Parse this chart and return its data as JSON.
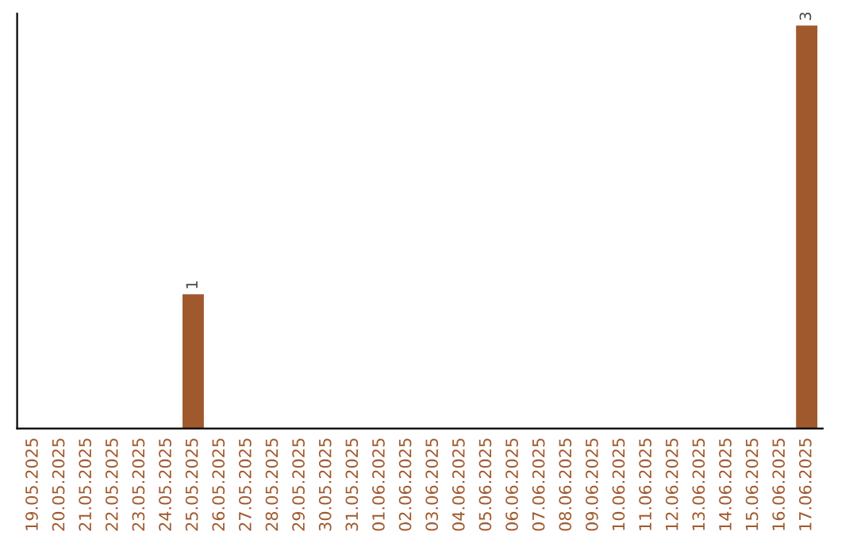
{
  "chart_data": {
    "type": "bar",
    "categories": [
      "19.05.2025",
      "20.05.2025",
      "21.05.2025",
      "22.05.2025",
      "23.05.2025",
      "24.05.2025",
      "25.05.2025",
      "26.05.2025",
      "27.05.2025",
      "28.05.2025",
      "29.05.2025",
      "30.05.2025",
      "31.05.2025",
      "01.06.2025",
      "02.06.2025",
      "03.06.2025",
      "04.06.2025",
      "05.06.2025",
      "06.06.2025",
      "07.06.2025",
      "08.06.2025",
      "09.06.2025",
      "10.06.2025",
      "11.06.2025",
      "12.06.2025",
      "13.06.2025",
      "14.06.2025",
      "15.06.2025",
      "16.06.2025",
      "17.06.2025"
    ],
    "values": [
      0,
      0,
      0,
      0,
      0,
      0,
      1,
      0,
      0,
      0,
      0,
      0,
      0,
      0,
      0,
      0,
      0,
      0,
      0,
      0,
      0,
      0,
      0,
      0,
      0,
      0,
      0,
      0,
      0,
      3
    ],
    "color": "#a0592d",
    "value_labels": [
      null,
      null,
      null,
      null,
      null,
      null,
      "1",
      null,
      null,
      null,
      null,
      null,
      null,
      null,
      null,
      null,
      null,
      null,
      null,
      null,
      null,
      null,
      null,
      null,
      null,
      null,
      null,
      null,
      null,
      "3"
    ],
    "tick_labels": "x",
    "grid": false,
    "legend": false
  }
}
